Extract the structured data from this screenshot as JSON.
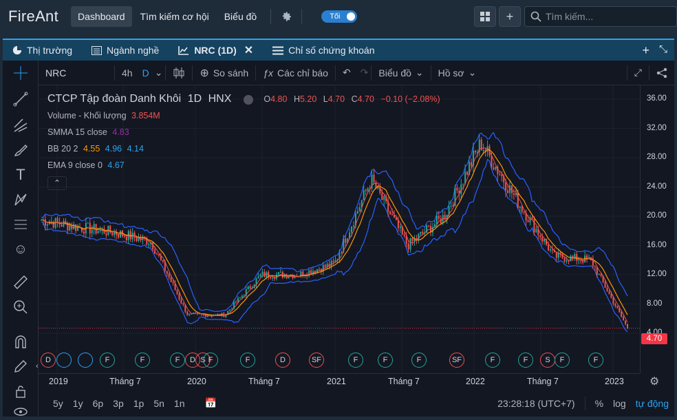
{
  "app": {
    "logo": "FireAnt"
  },
  "topnav": {
    "items": [
      "Dashboard",
      "Tìm kiếm cơ hội",
      "Biểu đồ"
    ],
    "toggle_label": "Tối"
  },
  "search": {
    "placeholder": "Tìm kiếm..."
  },
  "tabs": [
    {
      "label": "Thị trường",
      "icon": "pie-chart-icon"
    },
    {
      "label": "Ngành nghề",
      "icon": "list-icon"
    },
    {
      "label": "NRC (1D)",
      "icon": "chart-icon",
      "selected": true
    },
    {
      "label": "Chỉ số chứng khoán",
      "icon": "menu-icon"
    }
  ],
  "toolbar": {
    "symbol": "NRC",
    "interval1": "4h",
    "interval2": "D",
    "compare": "So sánh",
    "indicators": "Các chỉ báo",
    "chart_type": "Biểu đồ",
    "profile": "Hồ sơ"
  },
  "legend": {
    "name": "CTCP Tập đoàn Danh Khôi",
    "interval": "1D",
    "exchange": "HNX",
    "open_label": "O",
    "open": "4.80",
    "high_label": "H",
    "high": "5.20",
    "low_label": "L",
    "low": "4.70",
    "close_label": "C",
    "close": "4.70",
    "change": "−0.10 (−2.08%)",
    "volume_label": "Volume - Khối lượng",
    "volume": "3.854M",
    "smma_label": "SMMA 15 close",
    "smma": "4.83",
    "bb_label": "BB 20 2",
    "bb_mid": "4.55",
    "bb_up": "4.96",
    "bb_low": "4.14",
    "ema_label": "EMA 9 close 0",
    "ema": "4.67"
  },
  "price_axis": [
    "36.00",
    "32.00",
    "28.00",
    "24.00",
    "20.00",
    "16.00",
    "12.00",
    "8.00",
    "4.00"
  ],
  "last_price": "4.70",
  "time_axis": [
    "2019",
    "Tháng 7",
    "2020",
    "Tháng 7",
    "2021",
    "Tháng 7",
    "2022",
    "Tháng 7",
    "2023"
  ],
  "ranges": [
    "5y",
    "1y",
    "6p",
    "3p",
    "1p",
    "5n",
    "1n"
  ],
  "bottom": {
    "clock": "23:28:18 (UTC+7)",
    "percent": "%",
    "log": "log",
    "auto": "tự động"
  },
  "colors": {
    "up": "#26a69a",
    "down": "#ef5350",
    "bb": "#2962ff",
    "ema": "#ff9800",
    "accent": "#2aa3ef"
  },
  "chart_data": {
    "type": "line",
    "title": "CTCP Tập đoàn Danh Khôi 1D HNX",
    "ylim": [
      0,
      38
    ],
    "x": [
      "2019-01",
      "2019-04",
      "2019-07",
      "2019-10",
      "2020-01",
      "2020-04",
      "2020-07",
      "2020-10",
      "2021-01",
      "2021-04",
      "2021-07",
      "2021-10",
      "2022-01",
      "2022-04",
      "2022-07",
      "2022-10",
      "2023-01"
    ],
    "series": [
      {
        "name": "Close",
        "values": [
          19.5,
          18.5,
          17.8,
          16.5,
          6.5,
          6.5,
          12.0,
          12.0,
          13.5,
          25.0,
          16.0,
          20.0,
          30.0,
          22.0,
          14.5,
          14.0,
          4.7
        ]
      }
    ]
  }
}
